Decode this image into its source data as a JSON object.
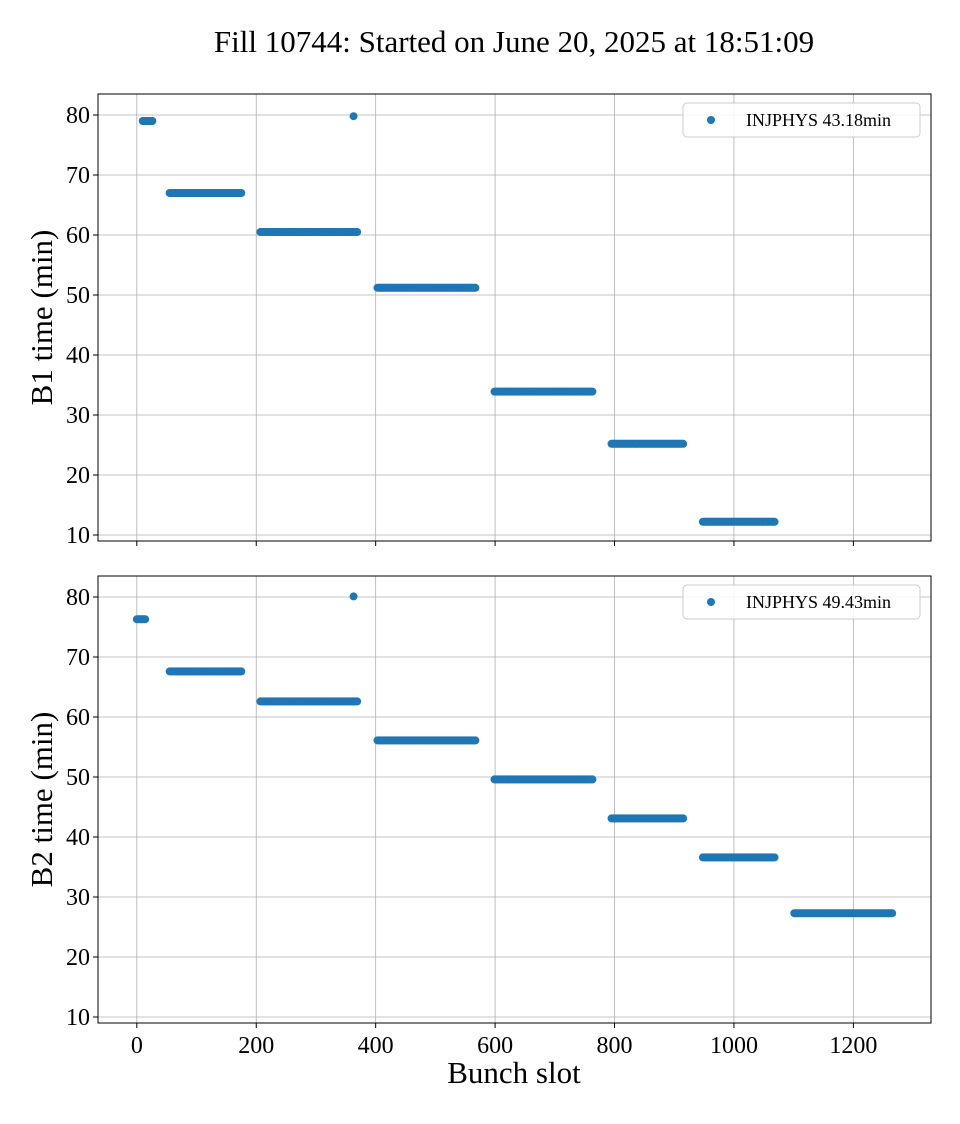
{
  "chart_data": {
    "type": "scatter",
    "title": "Fill 10744: Started on June 20, 2025 at 18:51:09",
    "xlabel": "Bunch slot",
    "xlim": [
      -65,
      1330
    ],
    "xticks": [
      0,
      200,
      400,
      600,
      800,
      1000,
      1200
    ],
    "grid": true,
    "color": "#1f77b4",
    "subplots": [
      {
        "ylabel": "B1 time (min)",
        "ylim": [
          9,
          83.5
        ],
        "yticks": [
          10,
          20,
          30,
          40,
          50,
          60,
          70,
          80
        ],
        "legend": {
          "label": "INJPHYS 43.18min",
          "position": "top-right"
        },
        "series": [
          {
            "name": "INJPHYS 43.18min",
            "segments": [
              {
                "x_start": 10,
                "x_end": 27,
                "y": 79.0
              },
              {
                "x_start": 55,
                "x_end": 175,
                "y": 67.0
              },
              {
                "x_start": 207,
                "x_end": 370,
                "y": 60.5
              },
              {
                "x_start": 403,
                "x_end": 568,
                "y": 51.2
              },
              {
                "x_start": 599,
                "x_end": 764,
                "y": 33.9
              },
              {
                "x_start": 795,
                "x_end": 916,
                "y": 25.2
              },
              {
                "x_start": 948,
                "x_end": 1069,
                "y": 12.2
              }
            ],
            "points": [
              {
                "x": 363,
                "y": 79.8
              }
            ]
          }
        ]
      },
      {
        "ylabel": "B2 time (min)",
        "ylim": [
          9,
          83.5
        ],
        "yticks": [
          10,
          20,
          30,
          40,
          50,
          60,
          70,
          80
        ],
        "legend": {
          "label": "INJPHYS 49.43min",
          "position": "top-right"
        },
        "series": [
          {
            "name": "INJPHYS 49.43min",
            "segments": [
              {
                "x_start": 0,
                "x_end": 14,
                "y": 76.3
              },
              {
                "x_start": 55,
                "x_end": 175,
                "y": 67.6
              },
              {
                "x_start": 207,
                "x_end": 370,
                "y": 62.6
              },
              {
                "x_start": 403,
                "x_end": 568,
                "y": 56.1
              },
              {
                "x_start": 599,
                "x_end": 764,
                "y": 49.6
              },
              {
                "x_start": 795,
                "x_end": 916,
                "y": 43.1
              },
              {
                "x_start": 948,
                "x_end": 1069,
                "y": 36.6
              },
              {
                "x_start": 1101,
                "x_end": 1266,
                "y": 27.3
              }
            ],
            "points": [
              {
                "x": 363,
                "y": 80.1
              }
            ]
          }
        ]
      }
    ]
  }
}
